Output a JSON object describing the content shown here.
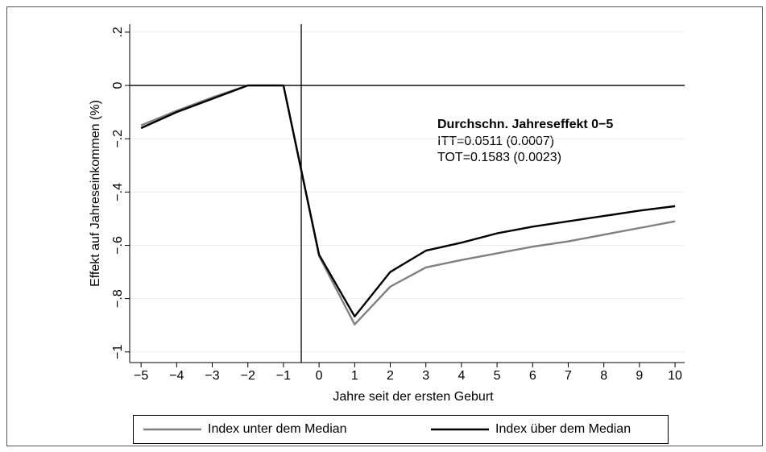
{
  "chart_data": {
    "type": "line",
    "x_label": "Jahre seit der ersten Geburt",
    "y_label": "Effekt auf Jahreseinkommen (%)",
    "x": [
      -5,
      -4,
      -3,
      -2,
      -1,
      0,
      1,
      2,
      3,
      4,
      5,
      6,
      7,
      8,
      9,
      10
    ],
    "series": [
      {
        "name": "Index unter dem Median",
        "color": "#808080",
        "values": [
          -0.15,
          -0.095,
          -0.045,
          0,
          0,
          -0.64,
          -0.897,
          -0.755,
          -0.683,
          -0.655,
          -0.63,
          -0.605,
          -0.585,
          -0.56,
          -0.535,
          -0.51
        ]
      },
      {
        "name": "Index über dem Median",
        "color": "#000000",
        "values": [
          -0.16,
          -0.1,
          -0.05,
          0,
          0,
          -0.635,
          -0.867,
          -0.7,
          -0.62,
          -0.59,
          -0.555,
          -0.53,
          -0.51,
          -0.49,
          -0.47,
          -0.453
        ]
      }
    ],
    "xlim": [
      -5.32,
      10.27
    ],
    "ylim": [
      -1.04,
      0.23
    ],
    "xticks": [
      {
        "value": -5,
        "label": "−5"
      },
      {
        "value": -4,
        "label": "−4"
      },
      {
        "value": -3,
        "label": "−3"
      },
      {
        "value": -2,
        "label": "−2"
      },
      {
        "value": -1,
        "label": "−1"
      },
      0,
      1,
      2,
      3,
      4,
      5,
      6,
      7,
      8,
      9,
      10
    ],
    "yticks": [
      {
        "value": 0.2,
        "label": ".2"
      },
      0,
      {
        "value": -0.2,
        "label": "−.2"
      },
      {
        "value": -0.4,
        "label": "−.4"
      },
      {
        "value": -0.6,
        "label": "−.6"
      },
      {
        "value": -0.8,
        "label": "−.8"
      },
      {
        "value": -1,
        "label": "−1"
      }
    ],
    "grid": true,
    "xline": -0.5,
    "yline": 0,
    "annotation": {
      "title": "Durchschn. Jahreseffekt 0−5",
      "lines": [
        "ITT=0.0511 (0.0007)",
        "TOT=0.1583 (0.0023)"
      ]
    },
    "legend": "bottom"
  }
}
